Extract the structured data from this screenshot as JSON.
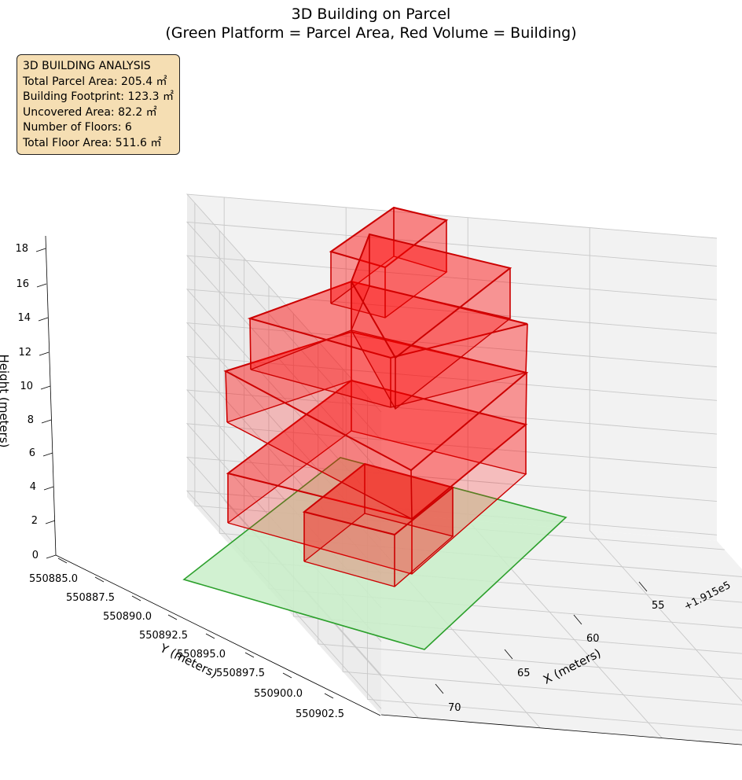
{
  "title": {
    "line1": "3D Building on Parcel",
    "line2": "(Green Platform = Parcel Area, Red Volume = Building)"
  },
  "stats_box": {
    "heading": "3D BUILDING ANALYSIS",
    "lines": [
      "Total Parcel Area: 205.4 ㎡",
      "Building Footprint: 123.3 ㎡",
      "Uncovered Area: 82.2 ㎡",
      "Number of Floors: 6",
      "Total Floor Area: 511.6 ㎡"
    ]
  },
  "colors": {
    "parcel_fill": "#c9efc9",
    "parcel_edge": "#2ca02c",
    "building_fill": "#ff0000",
    "building_edge": "#cc0000",
    "pane": "#f2f2f2",
    "grid": "#c8c8c8"
  },
  "chart_data": {
    "type": "3d-polygons",
    "xlabel": "X (meters)",
    "ylabel": "Y (meters)",
    "zlabel": "Height (meters)",
    "x_offset_label": "+1.915e5",
    "x_ticks": [
      "55",
      "60",
      "65",
      "70"
    ],
    "y_ticks": [
      "550885.0",
      "550887.5",
      "550890.0",
      "550892.5",
      "550895.0",
      "550897.5",
      "550900.0",
      "550902.5"
    ],
    "z_ticks": [
      "0",
      "2",
      "4",
      "6",
      "8",
      "10",
      "12",
      "14",
      "16",
      "18"
    ],
    "zlim": [
      0,
      18
    ],
    "parcel_height": 0,
    "floors": 6,
    "floor_height": 3
  }
}
